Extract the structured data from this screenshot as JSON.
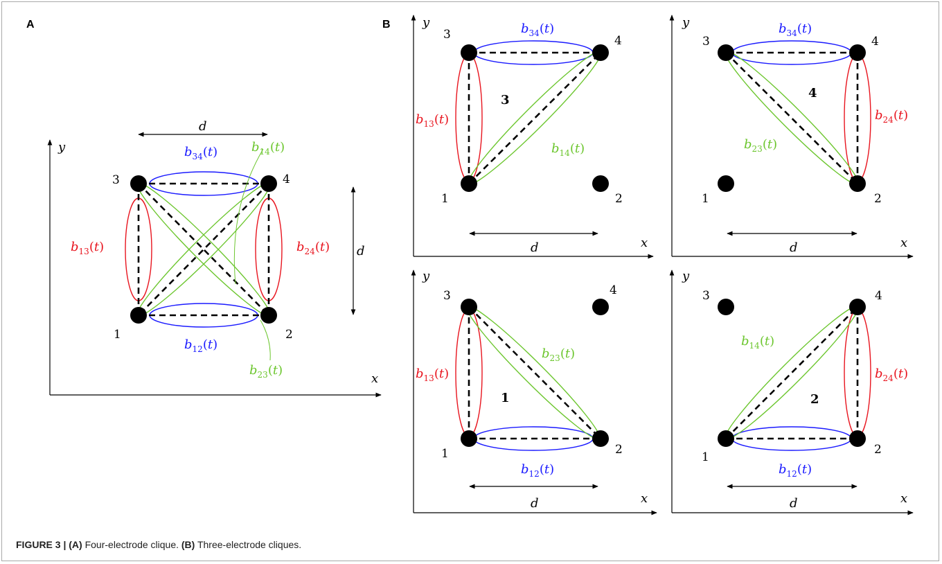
{
  "colors": {
    "blue": "#1a1aff",
    "red": "#e8141e",
    "green": "#6cc62e",
    "black": "#000000",
    "caption": "#222222"
  },
  "panel_a": {
    "label": "A",
    "axis_x": "x",
    "axis_y": "y",
    "dim_d_horizontal": "d",
    "dim_d_vertical": "d",
    "nodes": [
      "1",
      "2",
      "3",
      "4"
    ],
    "labels": {
      "b34": "b34(t)",
      "b14": "b14(t)",
      "b13": "b13(t)",
      "b24": "b24(t)",
      "b12": "b12(t)",
      "b23": "b23(t)"
    }
  },
  "panel_b": {
    "label": "B",
    "subpanels": [
      {
        "clique_id": "3",
        "nodes": [
          "1",
          "2",
          "3",
          "4"
        ],
        "axis_x": "x",
        "axis_y": "y",
        "dim_d": "d",
        "labels": {
          "b34": "b34(t)",
          "b13": "b13(t)",
          "b14": "b14(t)"
        }
      },
      {
        "clique_id": "4",
        "nodes": [
          "1",
          "2",
          "3",
          "4"
        ],
        "axis_x": "x",
        "axis_y": "y",
        "dim_d": "d",
        "labels": {
          "b34": "b34(t)",
          "b24": "b24(t)",
          "b23": "b23(t)"
        }
      },
      {
        "clique_id": "1",
        "nodes": [
          "1",
          "2",
          "3",
          "4"
        ],
        "axis_x": "x",
        "axis_y": "y",
        "dim_d": "d",
        "labels": {
          "b13": "b13(t)",
          "b23": "b23(t)",
          "b12": "b12(t)"
        }
      },
      {
        "clique_id": "2",
        "nodes": [
          "1",
          "2",
          "3",
          "4"
        ],
        "axis_x": "x",
        "axis_y": "y",
        "dim_d": "d",
        "labels": {
          "b14": "b14(t)",
          "b24": "b24(t)",
          "b12": "b12(t)"
        }
      }
    ]
  },
  "caption": {
    "figure": "FIGURE 3 |",
    "a_tag": "(A)",
    "a_text": "Four-electrode clique.",
    "b_tag": "(B)",
    "b_text": "Three-electrode cliques."
  }
}
